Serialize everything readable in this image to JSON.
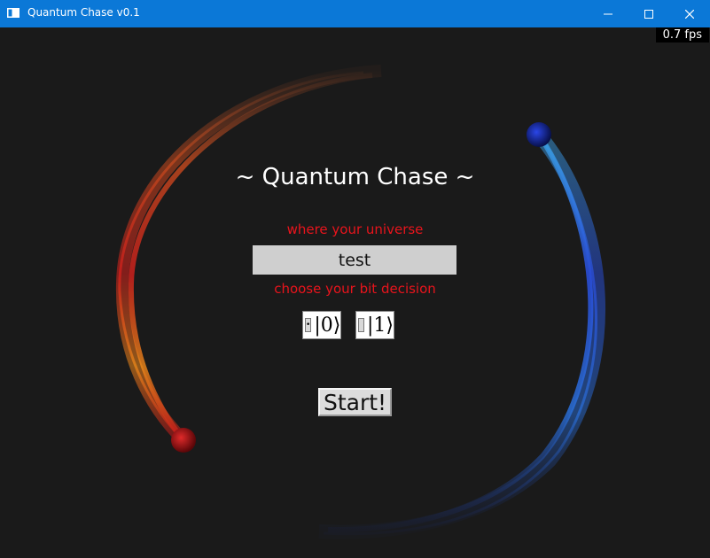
{
  "window": {
    "title": "Quantum Chase v0.1"
  },
  "hud": {
    "fps": "0.7 fps"
  },
  "menu": {
    "title": "~ Quantum Chase ~",
    "universe_label": "where your universe",
    "universe_value": "test",
    "bit_label": "choose your bit decision",
    "bit_options": [
      {
        "label": "|0⟩",
        "selected": true
      },
      {
        "label": "|1⟩",
        "selected": false
      }
    ],
    "start_label": "Start!"
  },
  "colors": {
    "titlebar": "#0b78d7",
    "background": "#1a1a1a",
    "label_red": "#e8141c",
    "red_planet": "#b0131a",
    "blue_planet": "#1a2fb5"
  }
}
